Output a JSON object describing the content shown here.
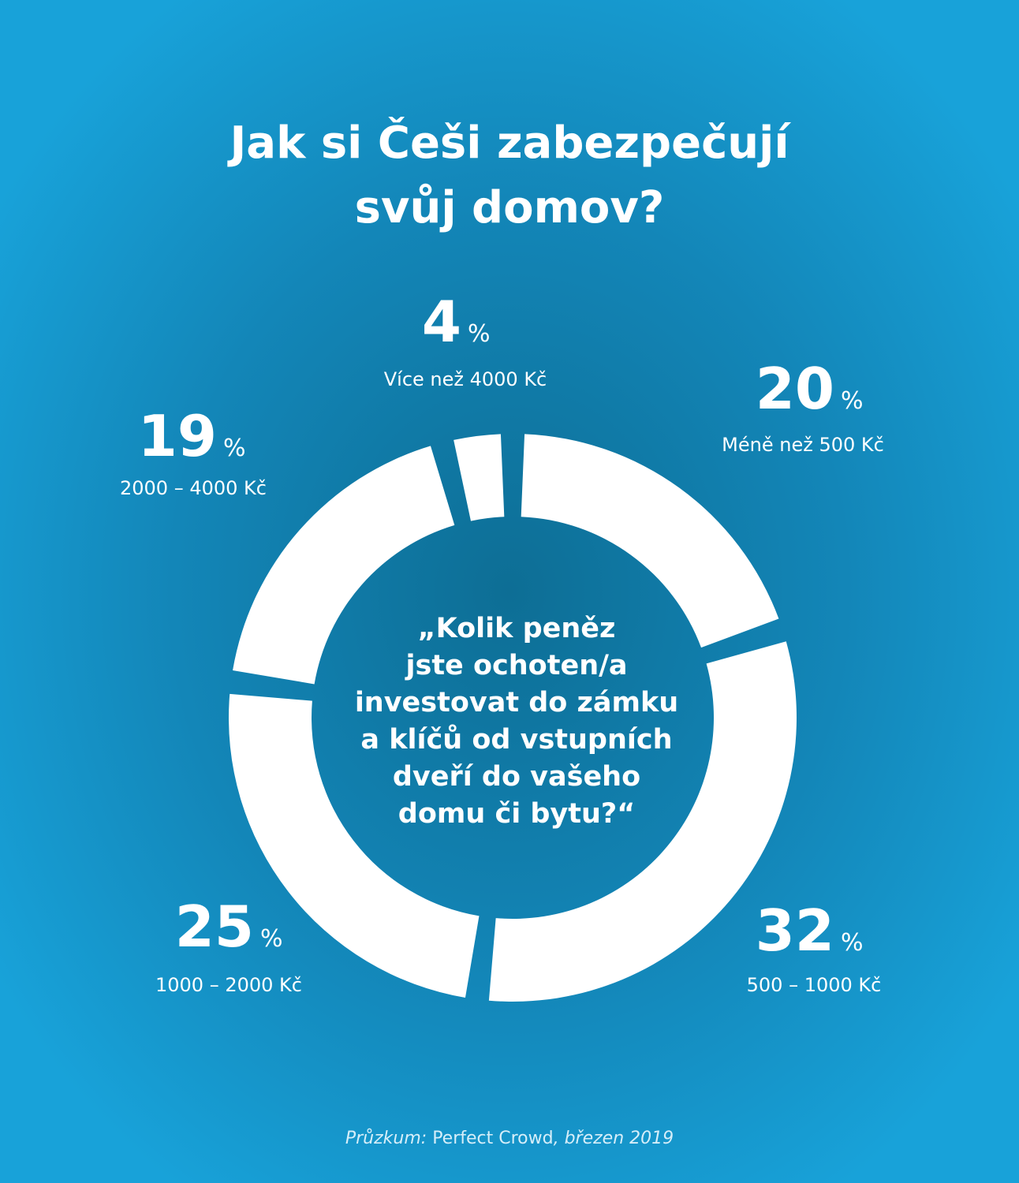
{
  "chart_data": {
    "type": "donut",
    "title": [
      "Jak si Češi zabezpečují",
      "svůj domov?"
    ],
    "categories": [
      "Méně než 500 Kč",
      "500 – 1000 Kč",
      "1000 – 2000 Kč",
      "2000 – 4000 Kč",
      "Více než 4000 Kč"
    ],
    "values": [
      20,
      32,
      25,
      19,
      4
    ],
    "unit": "%",
    "color": "#ffffff",
    "center_text": [
      "„Kolik peněz",
      "jste ochoten/a",
      "investovat do zámku",
      "a klíčů od vstupních",
      "dveří do vašeho",
      "domu či bytu?“"
    ],
    "source": [
      "Průzkum:",
      "Perfect Crowd",
      ", březen 2019"
    ]
  }
}
